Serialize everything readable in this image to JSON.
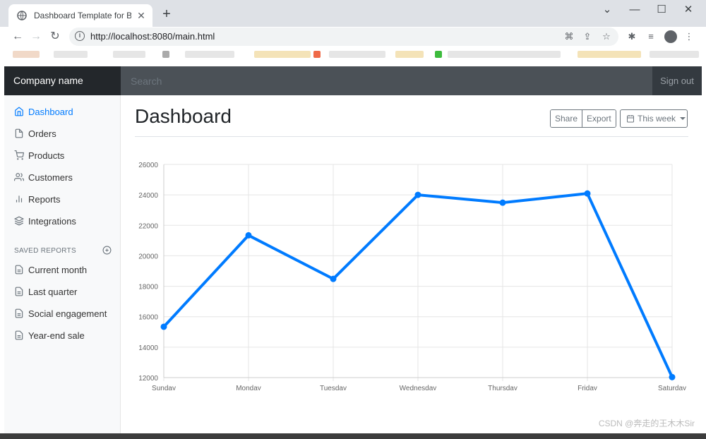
{
  "browser": {
    "tab_title": "Dashboard Template for Bootstrap",
    "url": "http://localhost:8080/main.html",
    "tab_close": "✕",
    "new_tab": "+"
  },
  "navbar": {
    "brand": "Company name",
    "search_placeholder": "Search",
    "sign_out": "Sign out"
  },
  "sidebar": {
    "items": [
      {
        "label": "Dashboard",
        "icon": "home-icon",
        "active": true
      },
      {
        "label": "Orders",
        "icon": "file-icon"
      },
      {
        "label": "Products",
        "icon": "shopping-cart-icon"
      },
      {
        "label": "Customers",
        "icon": "users-icon"
      },
      {
        "label": "Reports",
        "icon": "bar-chart-icon"
      },
      {
        "label": "Integrations",
        "icon": "layers-icon"
      }
    ],
    "saved_heading": "SAVED REPORTS",
    "saved": [
      {
        "label": "Current month",
        "icon": "file-text-icon"
      },
      {
        "label": "Last quarter",
        "icon": "file-text-icon"
      },
      {
        "label": "Social engagement",
        "icon": "file-text-icon"
      },
      {
        "label": "Year-end sale",
        "icon": "file-text-icon"
      }
    ]
  },
  "main": {
    "title": "Dashboard",
    "share": "Share",
    "export": "Export",
    "period": "This week"
  },
  "watermark": "CSDN @奔走的王木木Sir",
  "colors": {
    "accent": "#007bff",
    "navbar": "#343a40",
    "sidebar": "#f8f9fa"
  },
  "chart_data": {
    "type": "line",
    "categories": [
      "Sunday",
      "Monday",
      "Tuesday",
      "Wednesday",
      "Thursday",
      "Friday",
      "Saturday"
    ],
    "values": [
      15339,
      21345,
      18483,
      24003,
      23489,
      24092,
      12034
    ],
    "ylim": [
      12000,
      26000
    ],
    "yticks": [
      "12000",
      "14000",
      "16000",
      "18000",
      "20000",
      "22000",
      "24000",
      "26000"
    ],
    "grid": true,
    "legend": "none",
    "color": "#007bff"
  }
}
